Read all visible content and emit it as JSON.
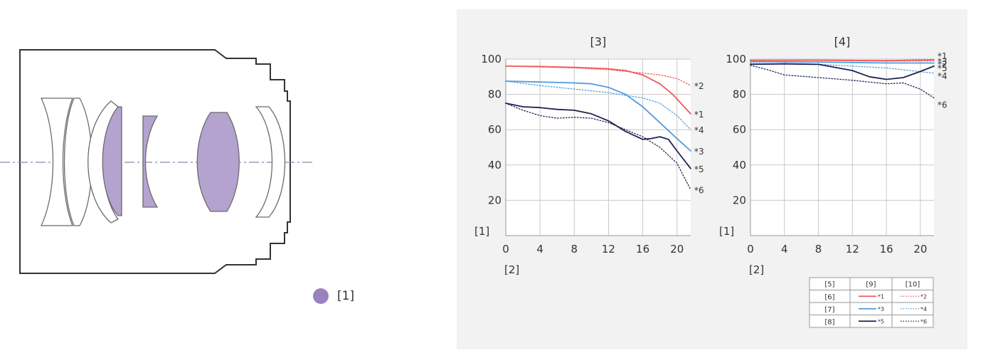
{
  "diagram": {
    "element_fill": "#b4a3cf",
    "element_stroke": "#6b6b6b",
    "axis_color": "#8d87a8"
  },
  "legend": {
    "label": "[1]",
    "color": "#9a82bf"
  },
  "table": {
    "header": [
      "[5]",
      "[9]",
      "[10]"
    ],
    "rows": [
      {
        "label": "[6]",
        "solid": "*1",
        "dotted": "*2",
        "color": "#f25a5a"
      },
      {
        "label": "[7]",
        "solid": "*3",
        "dotted": "*4",
        "color": "#4f9be0"
      },
      {
        "label": "[8]",
        "solid": "*5",
        "dotted": "*6",
        "color": "#1f2350"
      }
    ]
  },
  "chart_data": [
    {
      "type": "line",
      "title": "[3]",
      "ylabel": "[1]",
      "xlabel": "[2]",
      "xlim": [
        0,
        21.6
      ],
      "ylim": [
        0,
        100
      ],
      "xticks": [
        0,
        4,
        8,
        12,
        16,
        20
      ],
      "yticks": [
        20,
        40,
        60,
        80,
        100
      ],
      "grid": true,
      "series": [
        {
          "name": "*1",
          "style": "solid",
          "color": "#f25a5a",
          "x": [
            0,
            4,
            8,
            12,
            14,
            16,
            18,
            19.5,
            21.6
          ],
          "y": [
            96,
            95.8,
            95.3,
            94.5,
            93.5,
            91,
            86,
            80,
            69
          ]
        },
        {
          "name": "*2",
          "style": "dotted",
          "color": "#f25a5a",
          "x": [
            0,
            4,
            8,
            12,
            16,
            18,
            20,
            21.6
          ],
          "y": [
            96,
            95.5,
            95,
            94,
            92,
            91,
            89,
            85
          ]
        },
        {
          "name": "*3",
          "style": "solid",
          "color": "#4f9be0",
          "x": [
            0,
            4,
            8,
            10,
            12,
            14,
            16,
            18,
            20,
            21.6
          ],
          "y": [
            87.5,
            87,
            86.5,
            86,
            84,
            80,
            73,
            64,
            55,
            48
          ]
        },
        {
          "name": "*4",
          "style": "dotted",
          "color": "#4f9be0",
          "x": [
            0,
            4,
            8,
            12,
            16,
            18,
            20,
            21.6
          ],
          "y": [
            87.5,
            85,
            83,
            81,
            78,
            75,
            68,
            60
          ]
        },
        {
          "name": "*5",
          "style": "solid",
          "color": "#1f2350",
          "x": [
            0,
            2,
            4,
            6,
            8,
            10,
            12,
            14,
            16,
            17,
            18,
            19,
            20,
            21.6
          ],
          "y": [
            75,
            73,
            72.5,
            71.5,
            71,
            69,
            65,
            59,
            54.5,
            55,
            56,
            54.5,
            48,
            38
          ]
        },
        {
          "name": "*6",
          "style": "dotted",
          "color": "#1f2350",
          "x": [
            0,
            2,
            4,
            6,
            8,
            10,
            12,
            14,
            16,
            18,
            20,
            21.6
          ],
          "y": [
            75,
            71,
            68,
            66.5,
            67,
            66.5,
            64,
            60,
            56,
            50,
            41,
            26
          ]
        }
      ]
    },
    {
      "type": "line",
      "title": "[4]",
      "ylabel": "[1]",
      "xlabel": "[2]",
      "xlim": [
        0,
        21.6
      ],
      "ylim": [
        0,
        100
      ],
      "xticks": [
        0,
        4,
        8,
        12,
        16,
        20
      ],
      "yticks": [
        20,
        40,
        60,
        80,
        100
      ],
      "grid": true,
      "series": [
        {
          "name": "*1",
          "style": "solid",
          "color": "#f25a5a",
          "x": [
            0,
            8,
            16,
            21.6
          ],
          "y": [
            99.3,
            99.4,
            99.1,
            99.6
          ]
        },
        {
          "name": "*2",
          "style": "dotted",
          "color": "#f25a5a",
          "x": [
            0,
            8,
            16,
            21.6
          ],
          "y": [
            99.1,
            99.2,
            98.8,
            99
          ]
        },
        {
          "name": "*3",
          "style": "solid",
          "color": "#4f9be0",
          "x": [
            0,
            8,
            16,
            21.6
          ],
          "y": [
            98.5,
            98.3,
            97.8,
            97.8
          ]
        },
        {
          "name": "*4",
          "style": "dotted",
          "color": "#4f9be0",
          "x": [
            0,
            8,
            16,
            21.6
          ],
          "y": [
            97.5,
            97,
            95,
            92
          ]
        },
        {
          "name": "*5",
          "style": "solid",
          "color": "#1f2350",
          "x": [
            0,
            4,
            8,
            12,
            14,
            16,
            18,
            20,
            21.6
          ],
          "y": [
            97,
            97.3,
            97,
            93.5,
            90,
            88.5,
            89.5,
            93,
            96
          ]
        },
        {
          "name": "*6",
          "style": "dotted",
          "color": "#1f2350",
          "x": [
            0,
            2,
            4,
            8,
            12,
            16,
            18,
            20,
            21.6
          ],
          "y": [
            96.5,
            94,
            91,
            89.5,
            88,
            86,
            86.5,
            83,
            78
          ]
        }
      ]
    }
  ]
}
